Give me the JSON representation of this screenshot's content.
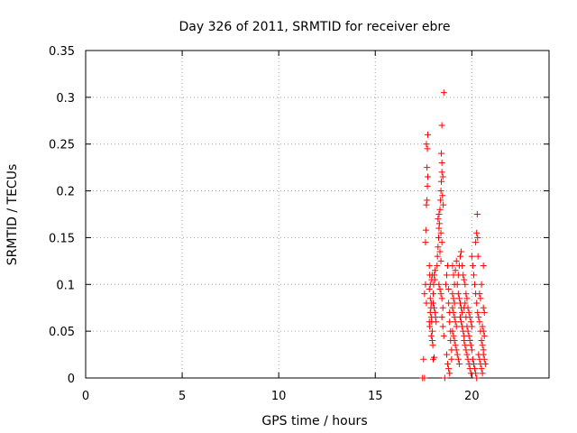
{
  "chart_data": {
    "type": "scatter",
    "title": "Day 326 of 2011, SRMTID for receiver ebre",
    "xlabel": "GPS time / hours",
    "ylabel": "SRMTID / TECUs",
    "xlim": [
      0,
      24
    ],
    "ylim": [
      0,
      0.35
    ],
    "xticks": [
      0,
      5,
      10,
      15,
      20
    ],
    "xtick_labels": [
      "0",
      "5",
      "10",
      "15",
      "20"
    ],
    "yticks": [
      0,
      0.05,
      0.1,
      0.15,
      0.2,
      0.25,
      0.3,
      0.35
    ],
    "ytick_labels": [
      "0",
      "0.05",
      "0.1",
      "0.15",
      "0.2",
      "0.25",
      "0.3",
      "0.35"
    ],
    "grid": true,
    "marker": "plus",
    "color": "#ff0000",
    "series": [
      {
        "name": "SRMTID",
        "points": [
          [
            17.45,
            0.0
          ],
          [
            17.55,
            0.0
          ],
          [
            17.5,
            0.02
          ],
          [
            17.6,
            0.1
          ],
          [
            17.55,
            0.09
          ],
          [
            17.65,
            0.08
          ],
          [
            17.6,
            0.145
          ],
          [
            17.62,
            0.158
          ],
          [
            17.65,
            0.185
          ],
          [
            17.68,
            0.19
          ],
          [
            17.7,
            0.205
          ],
          [
            17.72,
            0.215
          ],
          [
            17.68,
            0.225
          ],
          [
            17.7,
            0.245
          ],
          [
            17.72,
            0.26
          ],
          [
            17.65,
            0.25
          ],
          [
            17.8,
            0.12
          ],
          [
            17.82,
            0.11
          ],
          [
            17.85,
            0.1
          ],
          [
            17.8,
            0.095
          ],
          [
            17.85,
            0.085
          ],
          [
            17.9,
            0.08
          ],
          [
            17.88,
            0.075
          ],
          [
            17.9,
            0.065
          ],
          [
            17.92,
            0.06
          ],
          [
            17.95,
            0.05
          ],
          [
            17.9,
            0.045
          ],
          [
            17.95,
            0.04
          ],
          [
            17.98,
            0.035
          ],
          [
            17.85,
            0.07
          ],
          [
            17.8,
            0.06
          ],
          [
            17.82,
            0.055
          ],
          [
            18.0,
            0.09
          ],
          [
            18.02,
            0.1
          ],
          [
            18.05,
            0.11
          ],
          [
            18.08,
            0.105
          ],
          [
            18.1,
            0.115
          ],
          [
            18.0,
            0.08
          ],
          [
            18.05,
            0.075
          ],
          [
            18.1,
            0.07
          ],
          [
            18.12,
            0.065
          ],
          [
            18.15,
            0.06
          ],
          [
            18.0,
            0.02
          ],
          [
            18.05,
            0.022
          ],
          [
            17.95,
            0.11
          ],
          [
            17.92,
            0.105
          ],
          [
            18.2,
            0.12
          ],
          [
            18.22,
            0.13
          ],
          [
            18.25,
            0.14
          ],
          [
            18.28,
            0.15
          ],
          [
            18.3,
            0.16
          ],
          [
            18.32,
            0.165
          ],
          [
            18.25,
            0.17
          ],
          [
            18.3,
            0.175
          ],
          [
            18.35,
            0.18
          ],
          [
            18.38,
            0.19
          ],
          [
            18.4,
            0.2
          ],
          [
            18.42,
            0.21
          ],
          [
            18.45,
            0.22
          ],
          [
            18.45,
            0.23
          ],
          [
            18.42,
            0.24
          ],
          [
            18.45,
            0.27
          ],
          [
            18.55,
            0.305
          ],
          [
            18.5,
            0.215
          ],
          [
            18.48,
            0.195
          ],
          [
            18.52,
            0.185
          ],
          [
            18.4,
            0.155
          ],
          [
            18.45,
            0.145
          ],
          [
            18.35,
            0.135
          ],
          [
            18.4,
            0.125
          ],
          [
            18.3,
            0.1
          ],
          [
            18.35,
            0.095
          ],
          [
            18.4,
            0.09
          ],
          [
            18.45,
            0.085
          ],
          [
            18.5,
            0.075
          ],
          [
            18.45,
            0.065
          ],
          [
            18.5,
            0.055
          ],
          [
            18.55,
            0.045
          ],
          [
            18.6,
            0.0
          ],
          [
            18.65,
            0.1
          ],
          [
            18.7,
            0.11
          ],
          [
            18.75,
            0.12
          ],
          [
            18.8,
            0.095
          ],
          [
            18.8,
            0.08
          ],
          [
            18.85,
            0.07
          ],
          [
            18.85,
            0.06
          ],
          [
            18.9,
            0.05
          ],
          [
            18.9,
            0.04
          ],
          [
            18.95,
            0.03
          ],
          [
            18.95,
            0.02
          ],
          [
            18.7,
            0.025
          ],
          [
            18.75,
            0.015
          ],
          [
            18.8,
            0.01
          ],
          [
            18.85,
            0.005
          ],
          [
            19.0,
            0.09
          ],
          [
            19.05,
            0.085
          ],
          [
            19.1,
            0.08
          ],
          [
            19.0,
            0.075
          ],
          [
            19.05,
            0.07
          ],
          [
            19.1,
            0.065
          ],
          [
            19.15,
            0.06
          ],
          [
            19.2,
            0.055
          ],
          [
            19.0,
            0.05
          ],
          [
            19.05,
            0.045
          ],
          [
            19.1,
            0.04
          ],
          [
            19.15,
            0.035
          ],
          [
            19.2,
            0.03
          ],
          [
            19.25,
            0.025
          ],
          [
            19.3,
            0.02
          ],
          [
            19.35,
            0.015
          ],
          [
            19.0,
            0.12
          ],
          [
            19.05,
            0.11
          ],
          [
            19.1,
            0.1
          ],
          [
            19.15,
            0.115
          ],
          [
            19.2,
            0.125
          ],
          [
            19.25,
            0.1
          ],
          [
            19.3,
            0.09
          ],
          [
            19.35,
            0.085
          ],
          [
            19.4,
            0.08
          ],
          [
            19.45,
            0.075
          ],
          [
            19.5,
            0.07
          ],
          [
            19.4,
            0.065
          ],
          [
            19.45,
            0.06
          ],
          [
            19.5,
            0.055
          ],
          [
            19.55,
            0.05
          ],
          [
            19.6,
            0.045
          ],
          [
            19.4,
            0.13
          ],
          [
            19.45,
            0.135
          ],
          [
            19.5,
            0.12
          ],
          [
            19.55,
            0.11
          ],
          [
            19.6,
            0.105
          ],
          [
            19.65,
            0.1
          ],
          [
            19.3,
            0.11
          ],
          [
            19.35,
            0.12
          ],
          [
            19.6,
            0.04
          ],
          [
            19.65,
            0.035
          ],
          [
            19.7,
            0.03
          ],
          [
            19.75,
            0.025
          ],
          [
            19.8,
            0.02
          ],
          [
            19.85,
            0.015
          ],
          [
            19.9,
            0.01
          ],
          [
            19.95,
            0.005
          ],
          [
            19.7,
            0.09
          ],
          [
            19.75,
            0.085
          ],
          [
            19.8,
            0.075
          ],
          [
            19.85,
            0.07
          ],
          [
            19.9,
            0.065
          ],
          [
            19.95,
            0.06
          ],
          [
            20.0,
            0.055
          ],
          [
            19.7,
            0.065
          ],
          [
            19.75,
            0.055
          ],
          [
            19.8,
            0.05
          ],
          [
            19.85,
            0.045
          ],
          [
            19.9,
            0.04
          ],
          [
            19.95,
            0.035
          ],
          [
            20.0,
            0.03
          ],
          [
            19.65,
            0.08
          ],
          [
            19.6,
            0.075
          ],
          [
            20.0,
            0.13
          ],
          [
            20.05,
            0.12
          ],
          [
            20.1,
            0.11
          ],
          [
            20.15,
            0.1
          ],
          [
            20.2,
            0.09
          ],
          [
            20.25,
            0.08
          ],
          [
            20.2,
            0.145
          ],
          [
            20.25,
            0.155
          ],
          [
            20.28,
            0.175
          ],
          [
            20.3,
            0.15
          ],
          [
            20.32,
            0.13
          ],
          [
            20.1,
            0.015
          ],
          [
            20.15,
            0.01
          ],
          [
            20.2,
            0.005
          ],
          [
            20.25,
            0.0
          ],
          [
            20.05,
            0.02
          ],
          [
            20.3,
            0.07
          ],
          [
            20.35,
            0.065
          ],
          [
            20.4,
            0.06
          ],
          [
            20.45,
            0.05
          ],
          [
            20.5,
            0.04
          ],
          [
            20.55,
            0.035
          ],
          [
            20.6,
            0.03
          ],
          [
            20.35,
            0.025
          ],
          [
            20.4,
            0.02
          ],
          [
            20.45,
            0.015
          ],
          [
            20.5,
            0.01
          ],
          [
            20.55,
            0.005
          ],
          [
            20.6,
            0.075
          ],
          [
            20.65,
            0.07
          ],
          [
            20.6,
            0.12
          ],
          [
            20.5,
            0.1
          ],
          [
            20.4,
            0.09
          ],
          [
            20.45,
            0.085
          ],
          [
            20.55,
            0.055
          ],
          [
            20.6,
            0.05
          ],
          [
            20.65,
            0.045
          ],
          [
            20.6,
            0.025
          ],
          [
            20.65,
            0.02
          ],
          [
            20.7,
            0.015
          ]
        ]
      }
    ]
  }
}
